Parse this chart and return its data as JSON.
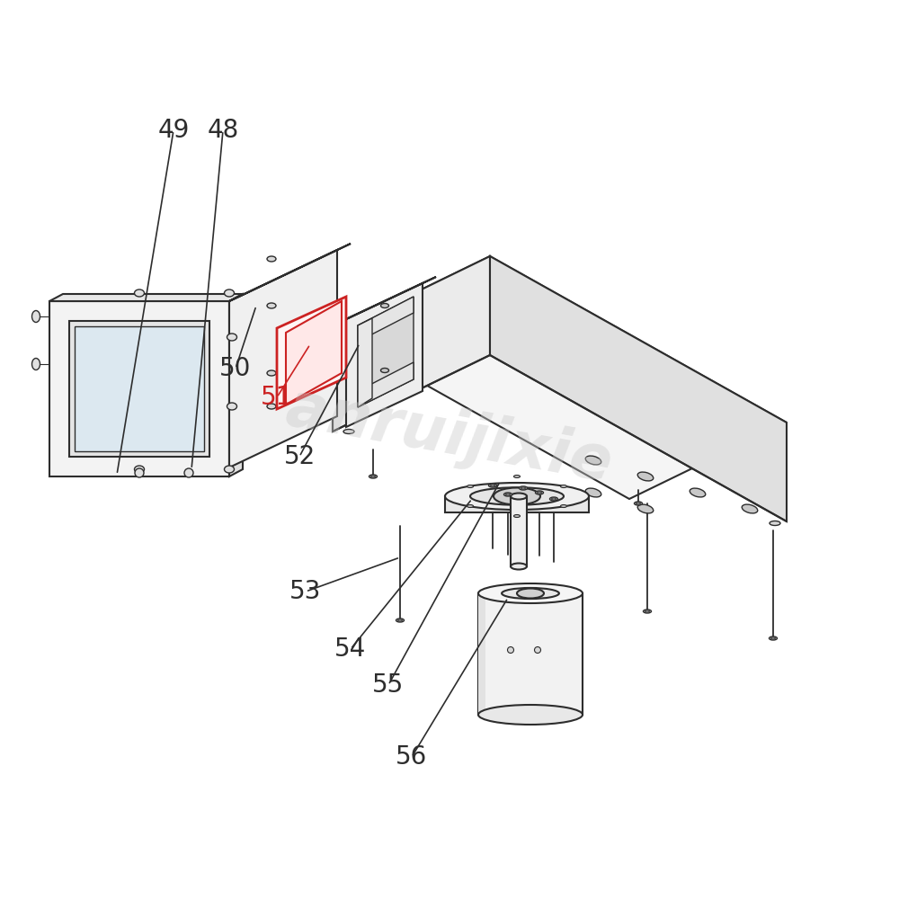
{
  "bg_color": "#ffffff",
  "line_color": "#2d2d2d",
  "red_color": "#cc2222",
  "watermark_color": "#c8c8c8",
  "watermark_text": "anruijixie"
}
